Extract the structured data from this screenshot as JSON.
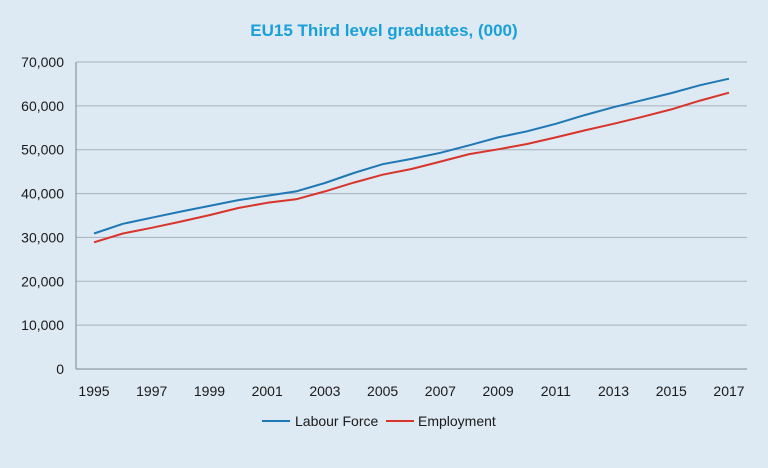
{
  "chart_data": {
    "type": "line",
    "title": "EU15 Third level graduates, (000)",
    "xlabel": "",
    "ylabel": "",
    "x": [
      1995,
      1996,
      1997,
      1998,
      1999,
      2000,
      2001,
      2002,
      2003,
      2004,
      2005,
      2006,
      2007,
      2008,
      2009,
      2010,
      2011,
      2012,
      2013,
      2014,
      2015,
      2016,
      2017
    ],
    "x_tick_labels": [
      "1995",
      "1997",
      "1999",
      "2001",
      "2003",
      "2005",
      "2007",
      "2009",
      "2011",
      "2013",
      "2015",
      "2017"
    ],
    "y_tick_labels": [
      "0",
      "10,000",
      "20,000",
      "30,000",
      "40,000",
      "50,000",
      "60,000",
      "70,000"
    ],
    "ylim": [
      0,
      70000
    ],
    "grid": true,
    "legend_position": "bottom",
    "series": [
      {
        "name": "Labour Force",
        "color": "#1f77b4",
        "values": [
          30900,
          33100,
          34500,
          35900,
          37200,
          38500,
          39500,
          40500,
          42400,
          44700,
          46700,
          47900,
          49300,
          51000,
          52800,
          54200,
          55900,
          57900,
          59700,
          61300,
          62900,
          64700,
          66200
        ]
      },
      {
        "name": "Employment",
        "color": "#d9342b",
        "values": [
          28900,
          30900,
          32200,
          33600,
          35100,
          36700,
          37900,
          38700,
          40500,
          42500,
          44300,
          45600,
          47300,
          49000,
          50100,
          51300,
          52800,
          54400,
          55900,
          57500,
          59200,
          61200,
          63000
        ]
      }
    ]
  },
  "colors": {
    "title": "#1aa0d8",
    "grid": "#a7b1bb",
    "axis": "#7d8690",
    "background": "#dde9f3"
  }
}
